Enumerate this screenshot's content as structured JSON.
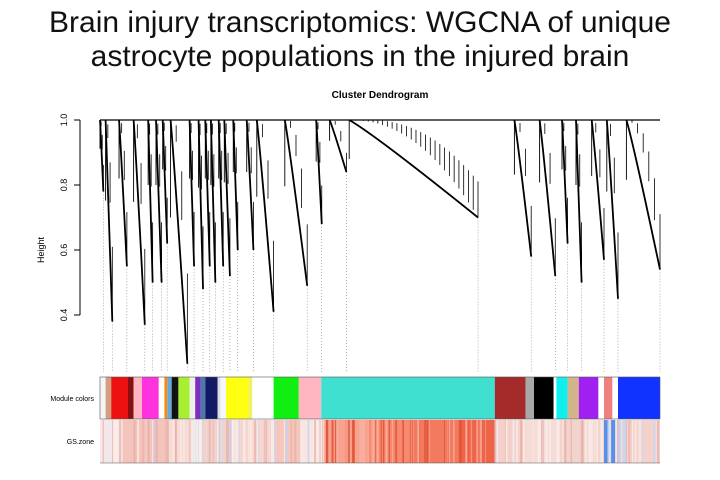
{
  "page": {
    "title_line1": "Brain injury transcriptomics: WGCNA of unique",
    "title_line2": "astrocyte populations in the injured brain"
  },
  "figure": {
    "plot_title": "Cluster Dendrogram",
    "ylabel": "Height",
    "y_ticks": [
      "0.4",
      "0.6",
      "0.8",
      "1.0"
    ],
    "row_label_module": "Module colors",
    "row_label_gs": "GS.zone"
  },
  "dendrogram": {
    "ylim": [
      0.2,
      1.0
    ],
    "branches": [
      {
        "x": 0.0,
        "w": 0.006,
        "min": 0.78
      },
      {
        "x": 0.01,
        "w": 0.012,
        "min": 0.38
      },
      {
        "x": 0.034,
        "w": 0.014,
        "min": 0.55
      },
      {
        "x": 0.06,
        "w": 0.02,
        "min": 0.37
      },
      {
        "x": 0.086,
        "w": 0.008,
        "min": 0.5
      },
      {
        "x": 0.1,
        "w": 0.01,
        "min": 0.5
      },
      {
        "x": 0.112,
        "w": 0.008,
        "min": 0.62
      },
      {
        "x": 0.126,
        "w": 0.03,
        "min": 0.25
      },
      {
        "x": 0.16,
        "w": 0.008,
        "min": 0.55
      },
      {
        "x": 0.176,
        "w": 0.008,
        "min": 0.48
      },
      {
        "x": 0.188,
        "w": 0.008,
        "min": 0.55
      },
      {
        "x": 0.198,
        "w": 0.008,
        "min": 0.5
      },
      {
        "x": 0.212,
        "w": 0.008,
        "min": 0.55
      },
      {
        "x": 0.222,
        "w": 0.01,
        "min": 0.52
      },
      {
        "x": 0.238,
        "w": 0.008,
        "min": 0.6
      },
      {
        "x": 0.262,
        "w": 0.012,
        "min": 0.6
      },
      {
        "x": 0.28,
        "w": 0.03,
        "min": 0.41
      },
      {
        "x": 0.33,
        "w": 0.04,
        "min": 0.49
      },
      {
        "x": 0.386,
        "w": 0.01,
        "min": 0.68
      },
      {
        "x": 0.41,
        "w": 0.03,
        "min": 0.84
      },
      {
        "x": 0.445,
        "w": 0.23,
        "min": 0.7
      },
      {
        "x": 0.74,
        "w": 0.03,
        "min": 0.58
      },
      {
        "x": 0.785,
        "w": 0.028,
        "min": 0.52
      },
      {
        "x": 0.825,
        "w": 0.01,
        "min": 0.62
      },
      {
        "x": 0.85,
        "w": 0.01,
        "min": 0.5
      },
      {
        "x": 0.878,
        "w": 0.022,
        "min": 0.57
      },
      {
        "x": 0.905,
        "w": 0.02,
        "min": 0.45
      },
      {
        "x": 0.94,
        "w": 0.06,
        "min": 0.54
      }
    ]
  },
  "modules": [
    {
      "x0": 0.0,
      "x1": 0.01,
      "color": "#f5f5f5"
    },
    {
      "x0": 0.01,
      "x1": 0.02,
      "color": "#d0a080"
    },
    {
      "x0": 0.02,
      "x1": 0.05,
      "color": "#ee1111"
    },
    {
      "x0": 0.05,
      "x1": 0.06,
      "color": "#881010"
    },
    {
      "x0": 0.06,
      "x1": 0.075,
      "color": "#ffb6c1"
    },
    {
      "x0": 0.075,
      "x1": 0.105,
      "color": "#ff33dd"
    },
    {
      "x0": 0.105,
      "x1": 0.115,
      "color": "#ffffff"
    },
    {
      "x0": 0.115,
      "x1": 0.12,
      "color": "#ff8800"
    },
    {
      "x0": 0.12,
      "x1": 0.128,
      "color": "#66aadd"
    },
    {
      "x0": 0.128,
      "x1": 0.14,
      "color": "#111111"
    },
    {
      "x0": 0.14,
      "x1": 0.16,
      "color": "#aaee33"
    },
    {
      "x0": 0.16,
      "x1": 0.17,
      "color": "#eeeeee"
    },
    {
      "x0": 0.17,
      "x1": 0.18,
      "color": "#7b2fbe"
    },
    {
      "x0": 0.18,
      "x1": 0.188,
      "color": "#4a7aa8"
    },
    {
      "x0": 0.188,
      "x1": 0.21,
      "color": "#121a66"
    },
    {
      "x0": 0.21,
      "x1": 0.215,
      "color": "#dddddd"
    },
    {
      "x0": 0.215,
      "x1": 0.225,
      "color": "#f3f7ff"
    },
    {
      "x0": 0.225,
      "x1": 0.265,
      "color": "#ffff11"
    },
    {
      "x0": 0.265,
      "x1": 0.272,
      "color": "#f0f060"
    },
    {
      "x0": 0.272,
      "x1": 0.31,
      "color": "#ffffff"
    },
    {
      "x0": 0.31,
      "x1": 0.355,
      "color": "#11ee11"
    },
    {
      "x0": 0.355,
      "x1": 0.395,
      "color": "#ffb6c1"
    },
    {
      "x0": 0.395,
      "x1": 0.705,
      "color": "#40e0d0"
    },
    {
      "x0": 0.705,
      "x1": 0.76,
      "color": "#a52a2a"
    },
    {
      "x0": 0.76,
      "x1": 0.775,
      "color": "#a8a8a8"
    },
    {
      "x0": 0.775,
      "x1": 0.81,
      "color": "#000000"
    },
    {
      "x0": 0.81,
      "x1": 0.815,
      "color": "#ffffff"
    },
    {
      "x0": 0.815,
      "x1": 0.835,
      "color": "#11eeee"
    },
    {
      "x0": 0.835,
      "x1": 0.855,
      "color": "#d2b48c"
    },
    {
      "x0": 0.855,
      "x1": 0.89,
      "color": "#a020f0"
    },
    {
      "x0": 0.89,
      "x1": 0.9,
      "color": "#ffffff"
    },
    {
      "x0": 0.9,
      "x1": 0.915,
      "color": "#f08080"
    },
    {
      "x0": 0.915,
      "x1": 0.925,
      "color": "#ffffff"
    },
    {
      "x0": 0.925,
      "x1": 1.0,
      "color": "#1133ff"
    }
  ],
  "gs_zones": [
    {
      "x0": 0.0,
      "x1": 0.04,
      "color": "#f3e7ea"
    },
    {
      "x0": 0.04,
      "x1": 0.12,
      "color": "#f4c4bc"
    },
    {
      "x0": 0.12,
      "x1": 0.165,
      "color": "#f7dcd6"
    },
    {
      "x0": 0.165,
      "x1": 0.18,
      "color": "#dbe3f0"
    },
    {
      "x0": 0.18,
      "x1": 0.23,
      "color": "#f2d2cc"
    },
    {
      "x0": 0.23,
      "x1": 0.31,
      "color": "#f5d6d0"
    },
    {
      "x0": 0.31,
      "x1": 0.36,
      "color": "#f6c6bc"
    },
    {
      "x0": 0.36,
      "x1": 0.4,
      "color": "#f8e6e2"
    },
    {
      "x0": 0.4,
      "x1": 0.48,
      "color": "#f7a390"
    },
    {
      "x0": 0.48,
      "x1": 0.56,
      "color": "#f68a70"
    },
    {
      "x0": 0.56,
      "x1": 0.64,
      "color": "#f27a5e"
    },
    {
      "x0": 0.64,
      "x1": 0.705,
      "color": "#ee6448"
    },
    {
      "x0": 0.705,
      "x1": 0.76,
      "color": "#f3d0c9"
    },
    {
      "x0": 0.76,
      "x1": 0.82,
      "color": "#f6dcd6"
    },
    {
      "x0": 0.82,
      "x1": 0.9,
      "color": "#f2d4ce"
    },
    {
      "x0": 0.9,
      "x1": 0.92,
      "color": "#5b8fe6"
    },
    {
      "x0": 0.92,
      "x1": 0.94,
      "color": "#c9d6f2"
    },
    {
      "x0": 0.94,
      "x1": 1.0,
      "color": "#f3d2cc"
    }
  ],
  "colors": {
    "dendrogram": "#000000",
    "grid_line": "#7a7a7a"
  }
}
